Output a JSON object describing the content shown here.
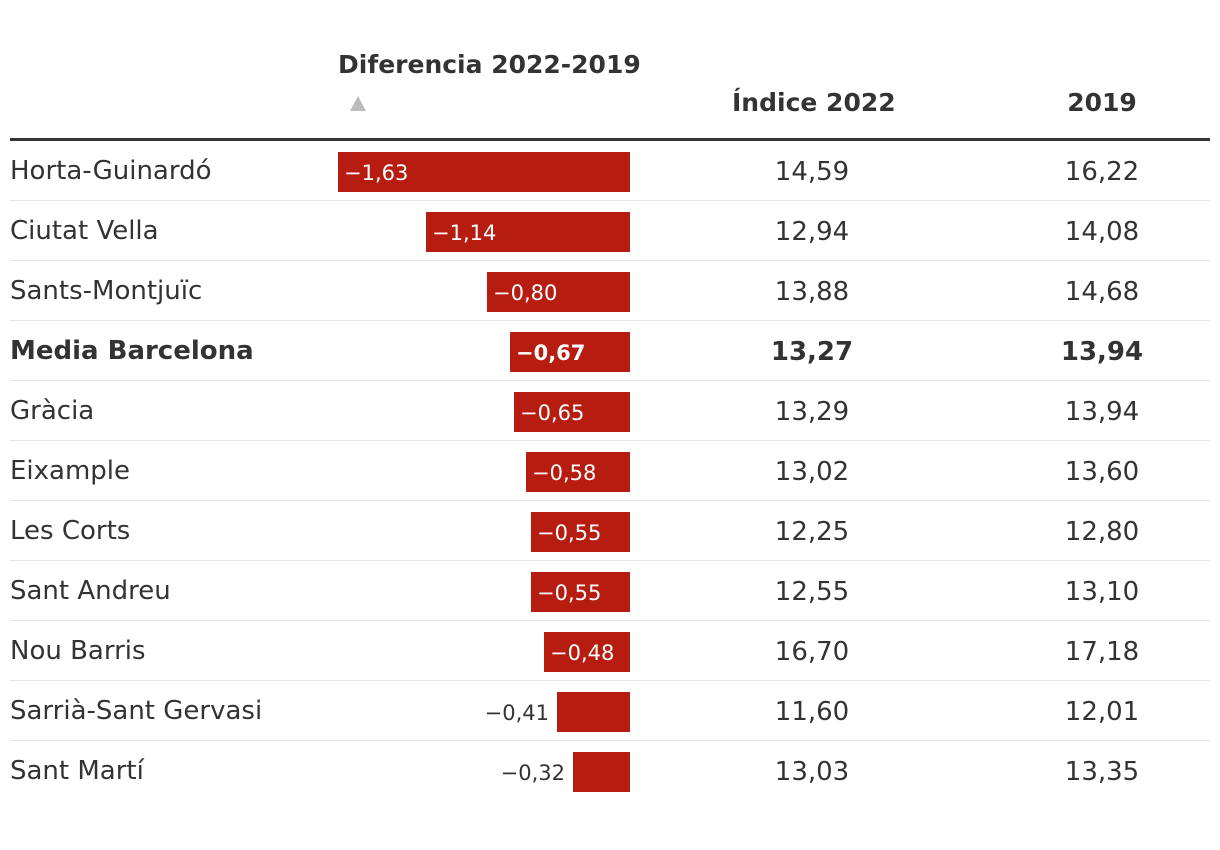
{
  "header": {
    "diff_label": "Diferencia 2022-2019",
    "index_label": "Índice 2022",
    "year_label": "2019"
  },
  "chart_data": {
    "type": "table",
    "columns": [
      "",
      "Diferencia 2022-2019",
      "Índice 2022",
      "2019"
    ],
    "sorted_by": "Diferencia 2022-2019",
    "sort_direction": "ascending",
    "bar_color": "#b71c11",
    "rows": [
      {
        "name": "Horta-Guinardó",
        "diff": -1.63,
        "diff_label": "−1,63",
        "index_2022": "14,59",
        "value_2019": "16,22",
        "bold": false
      },
      {
        "name": "Ciutat Vella",
        "diff": -1.14,
        "diff_label": "−1,14",
        "index_2022": "12,94",
        "value_2019": "14,08",
        "bold": false
      },
      {
        "name": "Sants-Montjuïc",
        "diff": -0.8,
        "diff_label": "−0,80",
        "index_2022": "13,88",
        "value_2019": "14,68",
        "bold": false
      },
      {
        "name": "Media Barcelona",
        "diff": -0.67,
        "diff_label": "−0,67",
        "index_2022": "13,27",
        "value_2019": "13,94",
        "bold": true
      },
      {
        "name": "Gràcia",
        "diff": -0.65,
        "diff_label": "−0,65",
        "index_2022": "13,29",
        "value_2019": "13,94",
        "bold": false
      },
      {
        "name": "Eixample",
        "diff": -0.58,
        "diff_label": "−0,58",
        "index_2022": "13,02",
        "value_2019": "13,60",
        "bold": false
      },
      {
        "name": "Les Corts",
        "diff": -0.55,
        "diff_label": "−0,55",
        "index_2022": "12,25",
        "value_2019": "12,80",
        "bold": false
      },
      {
        "name": "Sant Andreu",
        "diff": -0.55,
        "diff_label": "−0,55",
        "index_2022": "12,55",
        "value_2019": "13,10",
        "bold": false
      },
      {
        "name": "Nou Barris",
        "diff": -0.48,
        "diff_label": "−0,48",
        "index_2022": "16,70",
        "value_2019": "17,18",
        "bold": false
      },
      {
        "name": "Sarrià-Sant Gervasi",
        "diff": -0.41,
        "diff_label": "−0,41",
        "index_2022": "11,60",
        "value_2019": "12,01",
        "bold": false
      },
      {
        "name": "Sant Martí",
        "diff": -0.32,
        "diff_label": "−0,32",
        "index_2022": "13,03",
        "value_2019": "13,35",
        "bold": false
      }
    ]
  }
}
